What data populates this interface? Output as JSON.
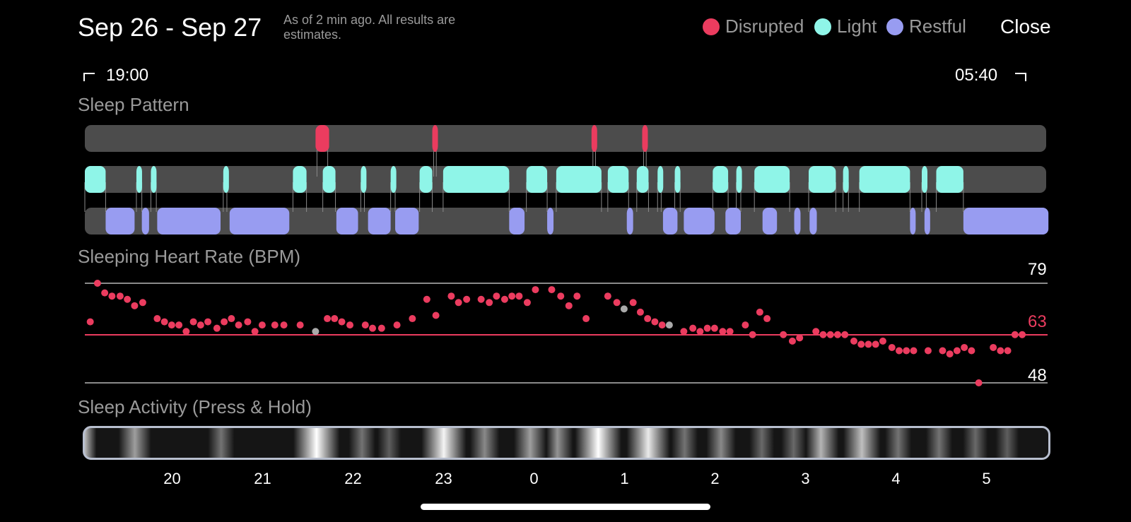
{
  "header": {
    "date_range": "Sep 26 - Sep 27",
    "note": "As of 2 min ago. All results are estimates.",
    "close_label": "Close"
  },
  "legend": [
    {
      "label": "Disrupted",
      "color": "#eb3c5f"
    },
    {
      "label": "Light",
      "color": "#8ff5e8"
    },
    {
      "label": "Restful",
      "color": "#989cf1"
    }
  ],
  "time_range": {
    "start": "19:00",
    "end": "05:40"
  },
  "sections": {
    "pattern": "Sleep Pattern",
    "heart_rate": "Sleeping Heart Rate (BPM)",
    "activity": "Sleep Activity (Press & Hold)"
  },
  "heart_rate_axis": {
    "max": "79",
    "avg": "63",
    "min": "48"
  },
  "x_ticks": [
    "20",
    "21",
    "22",
    "23",
    "0",
    "1",
    "2",
    "3",
    "4",
    "5"
  ],
  "chart_data": {
    "type": "scatter",
    "x_unit": "hours since 19:00",
    "y_unit": "BPM",
    "ylim": [
      48,
      79
    ],
    "avg": 63,
    "sleep_pattern": {
      "disrupted": [
        [
          2.55,
          2.7
        ],
        [
          3.84,
          3.9
        ],
        [
          5.6,
          5.66
        ],
        [
          6.16,
          6.22
        ]
      ],
      "light": [
        [
          0,
          0.23
        ],
        [
          0.57,
          0.63
        ],
        [
          0.73,
          0.79
        ],
        [
          1.53,
          1.57
        ],
        [
          2.3,
          2.45
        ],
        [
          2.63,
          2.77
        ],
        [
          3.05,
          3.09
        ],
        [
          3.38,
          3.43
        ],
        [
          3.7,
          3.84
        ],
        [
          3.96,
          4.69
        ],
        [
          4.88,
          5.11
        ],
        [
          5.21,
          5.71
        ],
        [
          5.78,
          6.01
        ],
        [
          6.1,
          6.23
        ],
        [
          6.33,
          6.37
        ],
        [
          6.52,
          6.58
        ],
        [
          6.94,
          7.11
        ],
        [
          7.2,
          7.25
        ],
        [
          7.4,
          7.79
        ],
        [
          8.0,
          8.3
        ],
        [
          8.38,
          8.44
        ],
        [
          8.56,
          9.12
        ],
        [
          9.25,
          9.3
        ],
        [
          9.41,
          9.71
        ]
      ],
      "restful": [
        [
          0.23,
          0.55
        ],
        [
          0.63,
          0.71
        ],
        [
          0.8,
          1.5
        ],
        [
          1.6,
          2.26
        ],
        [
          2.78,
          3.02
        ],
        [
          3.13,
          3.38
        ],
        [
          3.43,
          3.69
        ],
        [
          4.69,
          4.86
        ],
        [
          5.11,
          5.18
        ],
        [
          5.99,
          6.06
        ],
        [
          6.39,
          6.55
        ],
        [
          6.62,
          6.96
        ],
        [
          7.08,
          7.25
        ],
        [
          7.49,
          7.65
        ],
        [
          7.84,
          7.91
        ],
        [
          8.01,
          8.09
        ],
        [
          9.12,
          9.18
        ],
        [
          9.28,
          9.34
        ],
        [
          9.71,
          10.65
        ]
      ]
    },
    "heart_rate": [
      {
        "x": 0.06,
        "y": 67
      },
      {
        "x": 0.14,
        "y": 79
      },
      {
        "x": 0.22,
        "y": 76
      },
      {
        "x": 0.3,
        "y": 75
      },
      {
        "x": 0.39,
        "y": 75
      },
      {
        "x": 0.47,
        "y": 74
      },
      {
        "x": 0.55,
        "y": 72
      },
      {
        "x": 0.64,
        "y": 73
      },
      {
        "x": 0.8,
        "y": 68
      },
      {
        "x": 0.88,
        "y": 67
      },
      {
        "x": 0.96,
        "y": 66
      },
      {
        "x": 1.04,
        "y": 66
      },
      {
        "x": 1.12,
        "y": 64
      },
      {
        "x": 1.2,
        "y": 67
      },
      {
        "x": 1.28,
        "y": 66
      },
      {
        "x": 1.36,
        "y": 67
      },
      {
        "x": 1.46,
        "y": 65
      },
      {
        "x": 1.54,
        "y": 67
      },
      {
        "x": 1.62,
        "y": 68
      },
      {
        "x": 1.7,
        "y": 66
      },
      {
        "x": 1.8,
        "y": 67
      },
      {
        "x": 1.88,
        "y": 64
      },
      {
        "x": 1.96,
        "y": 66
      },
      {
        "x": 2.1,
        "y": 66
      },
      {
        "x": 2.2,
        "y": 66
      },
      {
        "x": 2.38,
        "y": 66
      },
      {
        "x": 2.55,
        "y": 64,
        "gray": true
      },
      {
        "x": 2.68,
        "y": 68
      },
      {
        "x": 2.76,
        "y": 68
      },
      {
        "x": 2.84,
        "y": 67
      },
      {
        "x": 2.93,
        "y": 66
      },
      {
        "x": 3.1,
        "y": 66
      },
      {
        "x": 3.18,
        "y": 65
      },
      {
        "x": 3.28,
        "y": 65
      },
      {
        "x": 3.45,
        "y": 66
      },
      {
        "x": 3.62,
        "y": 68
      },
      {
        "x": 3.78,
        "y": 74
      },
      {
        "x": 3.88,
        "y": 69
      },
      {
        "x": 4.05,
        "y": 75
      },
      {
        "x": 4.13,
        "y": 73
      },
      {
        "x": 4.22,
        "y": 74
      },
      {
        "x": 4.38,
        "y": 74
      },
      {
        "x": 4.47,
        "y": 73
      },
      {
        "x": 4.55,
        "y": 75
      },
      {
        "x": 4.64,
        "y": 74
      },
      {
        "x": 4.72,
        "y": 75
      },
      {
        "x": 4.8,
        "y": 75
      },
      {
        "x": 4.89,
        "y": 73
      },
      {
        "x": 4.98,
        "y": 77
      },
      {
        "x": 5.16,
        "y": 77
      },
      {
        "x": 5.26,
        "y": 75
      },
      {
        "x": 5.35,
        "y": 72
      },
      {
        "x": 5.44,
        "y": 75
      },
      {
        "x": 5.54,
        "y": 68
      },
      {
        "x": 5.78,
        "y": 75
      },
      {
        "x": 5.88,
        "y": 73
      },
      {
        "x": 5.96,
        "y": 71,
        "gray": true
      },
      {
        "x": 6.06,
        "y": 73
      },
      {
        "x": 6.14,
        "y": 70
      },
      {
        "x": 6.22,
        "y": 68
      },
      {
        "x": 6.3,
        "y": 67
      },
      {
        "x": 6.38,
        "y": 66
      },
      {
        "x": 6.46,
        "y": 66,
        "gray": true
      },
      {
        "x": 6.62,
        "y": 64
      },
      {
        "x": 6.72,
        "y": 65
      },
      {
        "x": 6.8,
        "y": 64
      },
      {
        "x": 6.88,
        "y": 65
      },
      {
        "x": 6.96,
        "y": 65
      },
      {
        "x": 7.05,
        "y": 64
      },
      {
        "x": 7.13,
        "y": 64
      },
      {
        "x": 7.3,
        "y": 66
      },
      {
        "x": 7.38,
        "y": 63
      },
      {
        "x": 7.46,
        "y": 70
      },
      {
        "x": 7.54,
        "y": 68
      },
      {
        "x": 7.72,
        "y": 63
      },
      {
        "x": 7.82,
        "y": 61
      },
      {
        "x": 7.9,
        "y": 62
      },
      {
        "x": 8.08,
        "y": 64
      },
      {
        "x": 8.16,
        "y": 63
      },
      {
        "x": 8.24,
        "y": 63
      },
      {
        "x": 8.32,
        "y": 63
      },
      {
        "x": 8.4,
        "y": 63
      },
      {
        "x": 8.5,
        "y": 61
      },
      {
        "x": 8.58,
        "y": 60
      },
      {
        "x": 8.66,
        "y": 60
      },
      {
        "x": 8.74,
        "y": 60
      },
      {
        "x": 8.82,
        "y": 61
      },
      {
        "x": 8.92,
        "y": 59
      },
      {
        "x": 9.0,
        "y": 58
      },
      {
        "x": 9.08,
        "y": 58
      },
      {
        "x": 9.16,
        "y": 58
      },
      {
        "x": 9.32,
        "y": 58
      },
      {
        "x": 9.48,
        "y": 58
      },
      {
        "x": 9.56,
        "y": 57
      },
      {
        "x": 9.64,
        "y": 58
      },
      {
        "x": 9.72,
        "y": 59
      },
      {
        "x": 9.8,
        "y": 58
      },
      {
        "x": 9.88,
        "y": 48
      },
      {
        "x": 10.04,
        "y": 59
      },
      {
        "x": 10.12,
        "y": 58
      },
      {
        "x": 10.2,
        "y": 58
      },
      {
        "x": 10.28,
        "y": 63
      },
      {
        "x": 10.36,
        "y": 63
      }
    ],
    "activity_peaks": [
      {
        "x": 0.55,
        "i": 0.55
      },
      {
        "x": 1.5,
        "i": 0.35
      },
      {
        "x": 2.55,
        "i": 1.0
      },
      {
        "x": 3.05,
        "i": 0.35
      },
      {
        "x": 3.35,
        "i": 0.25
      },
      {
        "x": 3.95,
        "i": 0.95
      },
      {
        "x": 4.4,
        "i": 0.45
      },
      {
        "x": 4.9,
        "i": 0.55
      },
      {
        "x": 5.2,
        "i": 0.5
      },
      {
        "x": 5.65,
        "i": 1.0
      },
      {
        "x": 6.2,
        "i": 0.9
      },
      {
        "x": 6.6,
        "i": 0.35
      },
      {
        "x": 7.0,
        "i": 0.45
      },
      {
        "x": 7.45,
        "i": 0.3
      },
      {
        "x": 7.8,
        "i": 0.3
      },
      {
        "x": 8.1,
        "i": 0.65
      },
      {
        "x": 8.55,
        "i": 0.7
      },
      {
        "x": 8.95,
        "i": 0.35
      },
      {
        "x": 9.4,
        "i": 0.35
      },
      {
        "x": 9.8,
        "i": 0.3
      },
      {
        "x": 10.15,
        "i": 0.25
      }
    ]
  }
}
